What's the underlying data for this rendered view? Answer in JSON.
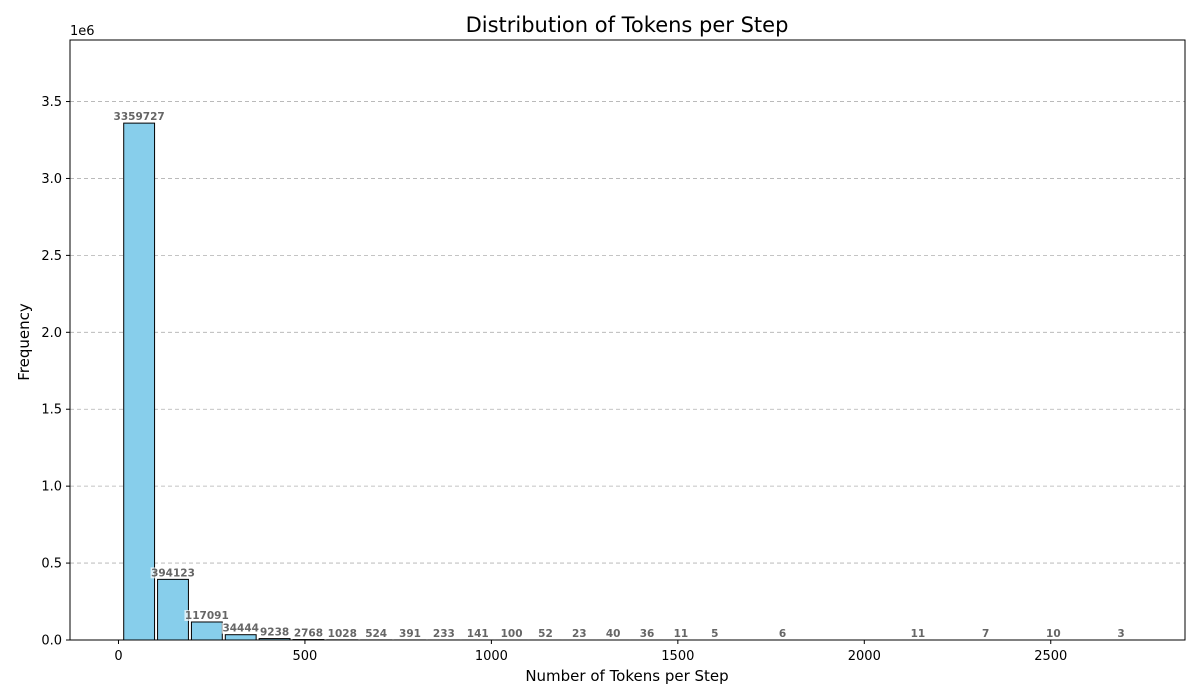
{
  "chart_data": {
    "type": "bar",
    "title": "Distribution of Tokens per Step",
    "xlabel": "Number of Tokens per Step",
    "ylabel": "Frequency",
    "y_offset_text": "1e6",
    "y_scale": 1000000,
    "xlim": [
      -130,
      2860
    ],
    "ylim": [
      0,
      3900000
    ],
    "xticks": [
      0,
      500,
      1000,
      1500,
      2000,
      2500
    ],
    "xtick_labels": [
      "0",
      "500",
      "1000",
      "1500",
      "2000",
      "2500"
    ],
    "yticks": [
      0,
      500000,
      1000000,
      1500000,
      2000000,
      2500000,
      3000000,
      3500000
    ],
    "ytick_labels": [
      "0.0",
      "0.5",
      "1.0",
      "1.5",
      "2.0",
      "2.5",
      "3.0",
      "3.5"
    ],
    "grid": "y-dashed",
    "bar_color": "#87ceeb",
    "bar_edge_color": "#000000",
    "bin_width": 90.8,
    "bin_start": 10,
    "values": [
      3359727,
      394123,
      117091,
      34444,
      9238,
      2768,
      1028,
      524,
      391,
      233,
      141,
      100,
      52,
      23,
      40,
      36,
      11,
      5,
      0,
      6,
      0,
      0,
      0,
      11,
      0,
      7,
      0,
      10,
      0,
      3
    ],
    "labels": [
      "3359727",
      "394123",
      "117091",
      "34444",
      "9238",
      "2768",
      "1028",
      "524",
      "391",
      "233",
      "141",
      "100",
      "52",
      "23",
      "40",
      "36",
      "11",
      "5",
      "",
      "6",
      "",
      "",
      "",
      "11",
      "",
      "7",
      "",
      "10",
      "",
      "3"
    ]
  }
}
